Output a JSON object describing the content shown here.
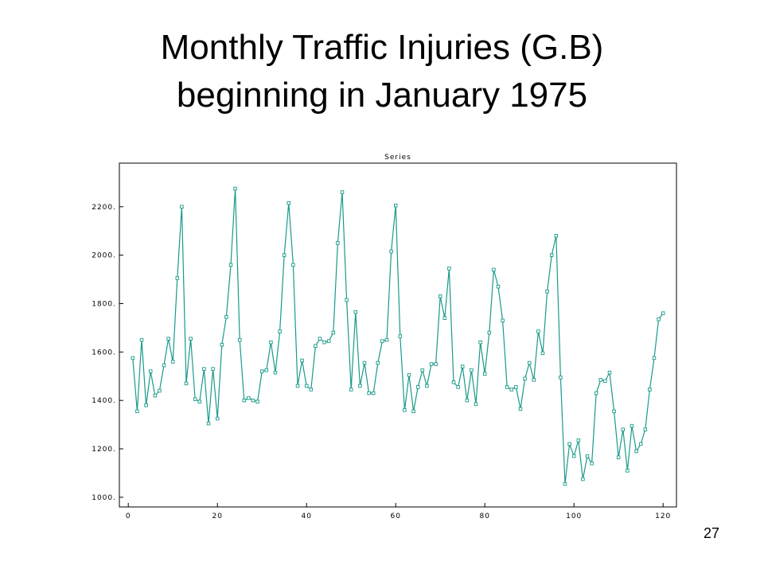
{
  "slide": {
    "title_line1": "Monthly Traffic Injuries (G.B)",
    "title_line2": "beginning in January 1975",
    "page_number": "27"
  },
  "chart_data": {
    "type": "line",
    "title": "Series",
    "xlabel": "",
    "ylabel": "",
    "xlim": [
      -2,
      123
    ],
    "ylim": [
      960,
      2380
    ],
    "xticks": [
      0,
      20,
      40,
      60,
      80,
      100,
      120
    ],
    "yticks": [
      1000,
      1200,
      1400,
      1600,
      1800,
      2000,
      2200
    ],
    "x_tick_labels": [
      "0",
      "20",
      "40",
      "60",
      "80",
      "100",
      "120"
    ],
    "y_tick_labels": [
      "1000.",
      "1200.",
      "1400.",
      "1600.",
      "1800.",
      "2000.",
      "2200."
    ],
    "grid": false,
    "colors": {
      "series": "#1a9a8a",
      "frame": "#000000"
    },
    "series": [
      {
        "x": [
          1,
          2,
          3,
          4,
          5,
          6,
          7,
          8,
          9,
          10,
          11,
          12,
          13,
          14,
          15,
          16,
          17,
          18,
          19,
          20,
          21,
          22,
          23,
          24,
          25,
          26,
          27,
          28,
          29,
          30,
          31,
          32,
          33,
          34,
          35,
          36,
          37,
          38,
          39,
          40,
          41,
          42,
          43,
          44,
          45,
          46,
          47,
          48,
          49,
          50,
          51,
          52,
          53,
          54,
          55,
          56,
          57,
          58,
          59,
          60,
          61,
          62,
          63,
          64,
          65,
          66,
          67,
          68,
          69,
          70,
          71,
          72,
          73,
          74,
          75,
          76,
          77,
          78,
          79,
          80,
          81,
          82,
          83,
          84,
          85,
          86,
          87,
          88,
          89,
          90,
          91,
          92,
          93,
          94,
          95,
          96,
          97,
          98,
          99,
          100,
          101,
          102,
          103,
          104,
          105,
          106,
          107,
          108,
          109,
          110,
          111,
          112,
          113,
          114,
          115,
          116,
          117,
          118,
          119,
          120
        ],
        "values": [
          1575,
          1355,
          1650,
          1380,
          1520,
          1420,
          1440,
          1545,
          1655,
          1560,
          1905,
          2200,
          1470,
          1655,
          1405,
          1395,
          1530,
          1305,
          1530,
          1325,
          1630,
          1745,
          1960,
          2275,
          1650,
          1400,
          1410,
          1400,
          1395,
          1520,
          1525,
          1640,
          1515,
          1685,
          2000,
          2215,
          1960,
          1460,
          1565,
          1460,
          1445,
          1625,
          1655,
          1640,
          1645,
          1680,
          2050,
          2260,
          1815,
          1445,
          1765,
          1460,
          1555,
          1430,
          1430,
          1555,
          1645,
          1650,
          2015,
          2205,
          1665,
          1360,
          1505,
          1355,
          1455,
          1525,
          1460,
          1550,
          1550,
          1830,
          1740,
          1945,
          1475,
          1455,
          1540,
          1400,
          1525,
          1385,
          1640,
          1510,
          1680,
          1940,
          1870,
          1730,
          1455,
          1445,
          1455,
          1365,
          1490,
          1555,
          1485,
          1685,
          1595,
          1850,
          2000,
          2080,
          1495,
          1055,
          1220,
          1170,
          1235,
          1075,
          1170,
          1140,
          1430,
          1485,
          1480,
          1515,
          1355,
          1165,
          1280,
          1110,
          1295,
          1190,
          1220,
          1280,
          1445,
          1575,
          1735,
          1760
        ]
      }
    ]
  }
}
